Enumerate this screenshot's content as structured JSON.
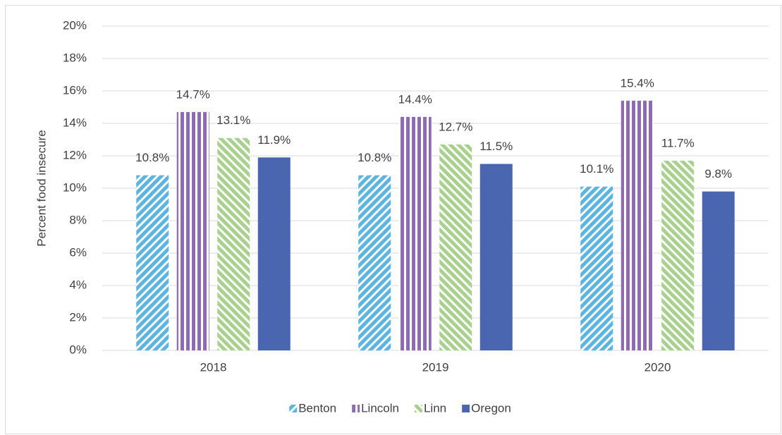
{
  "chart_data": {
    "type": "bar",
    "y_label": "Percent food insecure",
    "categories": [
      "2018",
      "2019",
      "2020"
    ],
    "series": [
      {
        "name": "Benton",
        "color": "#5bb5e0",
        "pattern": "diagonal-down",
        "values": [
          10.8,
          10.8,
          10.1
        ],
        "value_labels": [
          "10.8%",
          "10.8%",
          "10.1%"
        ]
      },
      {
        "name": "Lincoln",
        "color": "#8e6bb0",
        "pattern": "vertical",
        "values": [
          14.7,
          14.4,
          15.4
        ],
        "value_labels": [
          "14.7%",
          "14.4%",
          "15.4%"
        ]
      },
      {
        "name": "Linn",
        "color": "#a9d18e",
        "pattern": "diagonal-up",
        "values": [
          13.1,
          12.7,
          11.7
        ],
        "value_labels": [
          "13.1%",
          "12.7%",
          "11.7%"
        ]
      },
      {
        "name": "Oregon",
        "color": "#4a66b0",
        "pattern": "solid",
        "values": [
          11.9,
          11.5,
          9.8
        ],
        "value_labels": [
          "11.9%",
          "11.5%",
          "9.8%"
        ]
      }
    ],
    "ylim": [
      0,
      20
    ],
    "yticks": [
      {
        "value": 0,
        "label": "0%"
      },
      {
        "value": 2,
        "label": "2%"
      },
      {
        "value": 4,
        "label": "4%"
      },
      {
        "value": 6,
        "label": "6%"
      },
      {
        "value": 8,
        "label": "8%"
      },
      {
        "value": 10,
        "label": "10%"
      },
      {
        "value": 12,
        "label": "12%"
      },
      {
        "value": 14,
        "label": "14%"
      },
      {
        "value": 16,
        "label": "16%"
      },
      {
        "value": 18,
        "label": "18%"
      },
      {
        "value": 20,
        "label": "20%"
      }
    ],
    "grid": true,
    "legend": "bottom"
  }
}
